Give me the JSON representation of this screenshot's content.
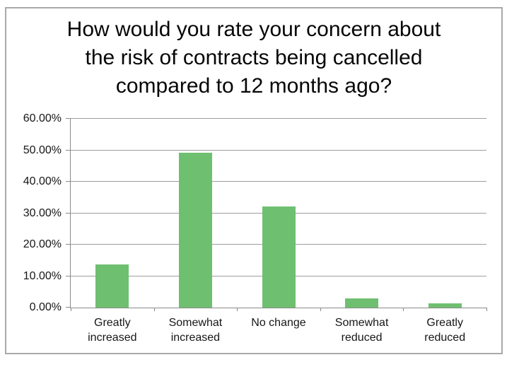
{
  "page": {
    "background": "#ffffff"
  },
  "chart": {
    "frame_border_color": "#a9a9a9",
    "title_color": "#060606",
    "title_lines": [
      "How would you rate your concern about",
      "the risk of contracts being cancelled",
      "compared to 12 months ago?"
    ]
  },
  "chart_data": {
    "type": "bar",
    "title": "How would you rate your concern about the risk of contracts being cancelled compared to 12 months ago?",
    "categories": [
      "Greatly increased",
      "Somewhat increased",
      "No change",
      "Somewhat reduced",
      "Greatly reduced"
    ],
    "category_lines": [
      [
        "Greatly",
        "increased"
      ],
      [
        "Somewhat",
        "increased"
      ],
      [
        "No change"
      ],
      [
        "Somewhat",
        "reduced"
      ],
      [
        "Greatly",
        "reduced"
      ]
    ],
    "values": [
      13.8,
      49.2,
      32.1,
      2.9,
      1.3
    ],
    "value_unit": "percent",
    "xlabel": "",
    "ylabel": "",
    "ylim": [
      0,
      60
    ],
    "y_tick_step": 10,
    "y_tick_labels": [
      "0.00%",
      "10.00%",
      "20.00%",
      "30.00%",
      "40.00%",
      "50.00%",
      "60.00%"
    ],
    "grid": "horizontal",
    "legend": "none",
    "bar_color": "#6fbf70",
    "gridline_color": "#9d9d9d",
    "axis_color": "#8a8a8a",
    "label_color": "#161616"
  }
}
